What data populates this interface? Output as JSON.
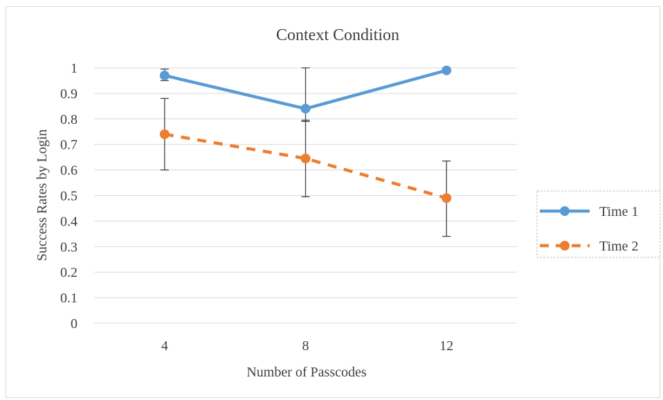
{
  "chart_data": {
    "type": "line",
    "title": "Context Condition",
    "xlabel": "Number of Passcodes",
    "ylabel": "Success Rates by Login",
    "categories": [
      "4",
      "8",
      "12"
    ],
    "ylim": [
      0,
      1
    ],
    "yticks": [
      "0",
      "0.1",
      "0.2",
      "0.3",
      "0.4",
      "0.5",
      "0.6",
      "0.7",
      "0.8",
      "0.9",
      "1"
    ],
    "grid": true,
    "legend_position": "right",
    "series": [
      {
        "name": "Time 1",
        "values": [
          0.97,
          0.84,
          0.99
        ],
        "error_low": [
          0.95,
          0.79,
          0.99
        ],
        "error_high": [
          0.995,
          1.0,
          0.99
        ],
        "color": "#5b9bd5",
        "dashed": false
      },
      {
        "name": "Time 2",
        "values": [
          0.74,
          0.645,
          0.49
        ],
        "error_low": [
          0.6,
          0.495,
          0.34
        ],
        "error_high": [
          0.88,
          0.795,
          0.635
        ],
        "color": "#ed7d31",
        "dashed": true
      }
    ]
  }
}
